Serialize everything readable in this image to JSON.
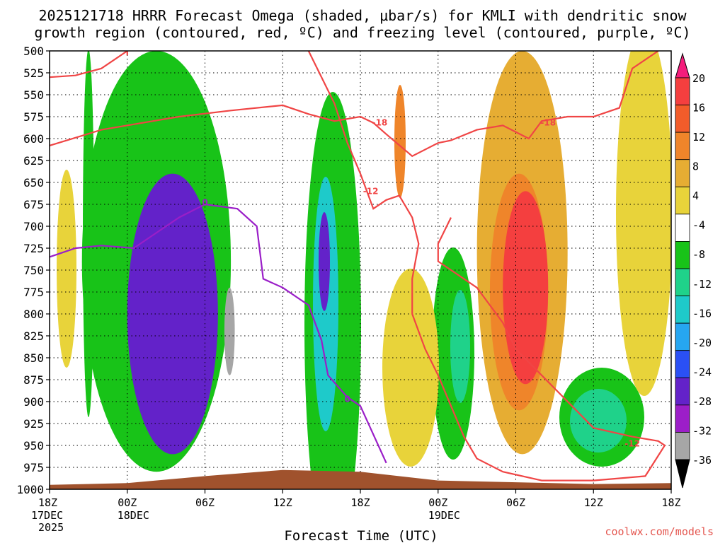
{
  "chart_data": {
    "type": "heatmap",
    "title_line1": "2025121718 HRRR Forecast Omega (shaded, μbar/s) for KMLI with dendritic snow",
    "title_line2": "growth region (contoured, red, ºC) and freezing level (contoured, purple, ºC)",
    "xlabel": "Forecast Time (UTC)",
    "credit": "coolwx.com/models",
    "y_ticks": [
      "500",
      "525",
      "550",
      "575",
      "600",
      "625",
      "650",
      "675",
      "700",
      "725",
      "750",
      "775",
      "800",
      "825",
      "850",
      "875",
      "900",
      "925",
      "950",
      "975",
      "1000"
    ],
    "ylim": [
      500,
      1000
    ],
    "x_ticks": [
      {
        "h": 0,
        "l1": "18Z",
        "l2": "17DEC",
        "l3": "2025"
      },
      {
        "h": 6,
        "l1": "00Z",
        "l2": "18DEC",
        "l3": ""
      },
      {
        "h": 12,
        "l1": "06Z",
        "l2": "",
        "l3": ""
      },
      {
        "h": 18,
        "l1": "12Z",
        "l2": "",
        "l3": ""
      },
      {
        "h": 24,
        "l1": "18Z",
        "l2": "",
        "l3": ""
      },
      {
        "h": 30,
        "l1": "00Z",
        "l2": "19DEC",
        "l3": ""
      },
      {
        "h": 36,
        "l1": "06Z",
        "l2": "",
        "l3": ""
      },
      {
        "h": 42,
        "l1": "12Z",
        "l2": "",
        "l3": ""
      },
      {
        "h": 48,
        "l1": "18Z",
        "l2": "",
        "l3": ""
      }
    ],
    "xlim": [
      0,
      48
    ],
    "colorbar": {
      "labels": [
        "20",
        "16",
        "12",
        "8",
        "4",
        "-4",
        "-8",
        "-12",
        "-16",
        "-20",
        "-24",
        "-28",
        "-32",
        "-36"
      ],
      "colors": [
        "#f51d7c",
        "#f43f3f",
        "#f25c2a",
        "#ef852a",
        "#e6ad33",
        "#e8d33a",
        "#ffffff",
        "#18c318",
        "#1fd28a",
        "#1ecaca",
        "#26a6f1",
        "#2a50f5",
        "#6322c9",
        "#9c1ec8",
        "#a6a6a6",
        "#000000"
      ]
    },
    "omega_fields": [
      {
        "name": "upward-pos-moderate",
        "h_start": 33,
        "h_end": 40,
        "p_top": 500,
        "p_bottom": 960,
        "value": 8,
        "color": "#e6ad33"
      },
      {
        "name": "upward-pos-strong",
        "h_start": 34,
        "h_end": 38.5,
        "p_top": 640,
        "p_bottom": 910,
        "value": 14,
        "color": "#ef852a"
      },
      {
        "name": "upward-pos-max",
        "h_start": 35,
        "h_end": 38.5,
        "p_top": 660,
        "p_bottom": 880,
        "value": 18,
        "color": "#f43f3f"
      },
      {
        "name": "neg-main-band",
        "h_start": 2.5,
        "h_end": 14,
        "p_top": 500,
        "p_bottom": 980,
        "value": -8,
        "color": "#18c318"
      },
      {
        "name": "neg-strong-core",
        "h_start": 6,
        "h_end": 13,
        "p_top": 640,
        "p_bottom": 960,
        "value": -26,
        "color": "#6322c9"
      },
      {
        "name": "neg-min-core",
        "h_start": 13.5,
        "h_end": 14.3,
        "p_top": 770,
        "p_bottom": 870,
        "value": -34,
        "color": "#a6a6a6"
      }
    ],
    "freezing_level": {
      "label": "0",
      "color": "#9a1ec8",
      "points": [
        [
          0,
          735
        ],
        [
          2,
          725
        ],
        [
          4,
          722
        ],
        [
          6.5,
          725
        ],
        [
          8,
          710
        ],
        [
          10,
          690
        ],
        [
          12,
          675
        ],
        [
          14.5,
          680
        ],
        [
          16,
          700
        ],
        [
          16.5,
          760
        ],
        [
          18,
          770
        ],
        [
          20,
          790
        ],
        [
          21,
          830
        ],
        [
          21.5,
          870
        ],
        [
          23,
          895
        ],
        [
          24,
          905
        ],
        [
          26,
          970
        ]
      ]
    },
    "dgz_contours": [
      {
        "label": "-18",
        "color": "#f04545",
        "points": [
          [
            0,
            530
          ],
          [
            2,
            528
          ],
          [
            4,
            520
          ],
          [
            6,
            500
          ],
          [
            6,
            505
          ]
        ]
      },
      {
        "label": "-18",
        "color": "#f04545",
        "points": [
          [
            0,
            608
          ],
          [
            4,
            590
          ],
          [
            8,
            580
          ],
          [
            10,
            575
          ],
          [
            14,
            568
          ],
          [
            18,
            562
          ],
          [
            20,
            572
          ],
          [
            22,
            580
          ],
          [
            24,
            575
          ],
          [
            25,
            582
          ],
          [
            26,
            595
          ],
          [
            28,
            620
          ],
          [
            30,
            605
          ],
          [
            31,
            602
          ],
          [
            33,
            590
          ],
          [
            35,
            585
          ],
          [
            37,
            600
          ],
          [
            38,
            580
          ],
          [
            40,
            575
          ],
          [
            42,
            575
          ],
          [
            44,
            565
          ],
          [
            45,
            520
          ],
          [
            47,
            500
          ]
        ]
      },
      {
        "label": "-12",
        "color": "#f04545",
        "points": [
          [
            20,
            500
          ],
          [
            22,
            560
          ],
          [
            23,
            605
          ],
          [
            24,
            640
          ],
          [
            25,
            680
          ],
          [
            26,
            670
          ],
          [
            27,
            665
          ],
          [
            28,
            690
          ],
          [
            28.5,
            720
          ],
          [
            28,
            760
          ],
          [
            28,
            800
          ],
          [
            29,
            840
          ],
          [
            30,
            870
          ],
          [
            31,
            905
          ],
          [
            32,
            940
          ],
          [
            33,
            965
          ],
          [
            35,
            980
          ],
          [
            38,
            990
          ],
          [
            42,
            990
          ],
          [
            46,
            985
          ],
          [
            47.5,
            950
          ],
          [
            47,
            945
          ],
          [
            45,
            940
          ],
          [
            42,
            930
          ],
          [
            40,
            900
          ],
          [
            38,
            870
          ],
          [
            36,
            840
          ],
          [
            35,
            810
          ],
          [
            33,
            770
          ],
          [
            31,
            750
          ],
          [
            30,
            740
          ],
          [
            30,
            720
          ],
          [
            31,
            690
          ]
        ]
      }
    ],
    "terrain": {
      "color": "#a0522d",
      "points": [
        [
          0,
          995
        ],
        [
          6,
          993
        ],
        [
          12,
          985
        ],
        [
          18,
          978
        ],
        [
          24,
          980
        ],
        [
          30,
          990
        ],
        [
          36,
          992
        ],
        [
          42,
          994
        ],
        [
          48,
          993
        ]
      ]
    }
  }
}
